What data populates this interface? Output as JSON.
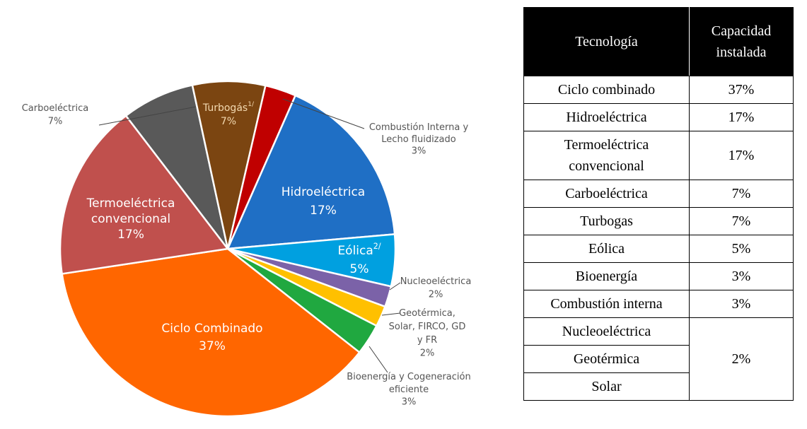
{
  "chart_data": {
    "type": "pie",
    "categories": [
      [
        "Combustión Interna y",
        "Lecho fluidizado"
      ],
      [
        "Hidroeléctrica"
      ],
      [
        "Eólica"
      ],
      [
        "Nucleoeléctrica"
      ],
      [
        "Geotérmica,",
        "Solar, FIRCO, GD",
        "y FR"
      ],
      [
        "Bioenergía y Cogeneración",
        "eficiente"
      ],
      [
        "Ciclo Combinado"
      ],
      [
        "Termoeléctrica",
        "convencional"
      ],
      [
        "Carboeléctrica"
      ],
      [
        "Turbogás"
      ]
    ],
    "footnotes": {
      "2": "2/",
      "9": "1/"
    },
    "values": [
      3,
      17,
      5,
      2,
      2,
      3,
      37,
      17,
      7,
      7
    ],
    "value_labels": [
      "3%",
      "17%",
      "5%",
      "2%",
      "2%",
      "3%",
      "37%",
      "17%",
      "7%",
      "7%"
    ],
    "colors": [
      "#c00000",
      "#1f6fc5",
      "#00a0e0",
      "#7b62a8",
      "#ffc000",
      "#20a840",
      "#ff6600",
      "#c0504d",
      "#595959",
      "#7b4511"
    ]
  },
  "table": {
    "header": [
      [
        "Tecnología"
      ],
      [
        "Capacidad",
        "instalada"
      ]
    ],
    "rows": [
      {
        "tech": [
          "Ciclo combinado"
        ],
        "value": "37%"
      },
      {
        "tech": [
          "Hidroeléctrica"
        ],
        "value": "17%"
      },
      {
        "tech": [
          "Termoeléctrica",
          "convencional"
        ],
        "value": "17%"
      },
      {
        "tech": [
          "Carboeléctrica"
        ],
        "value": "7%"
      },
      {
        "tech": [
          "Turbogas"
        ],
        "value": "7%"
      },
      {
        "tech": [
          "Eólica"
        ],
        "value": "5%"
      },
      {
        "tech": [
          "Bioenergía"
        ],
        "value": "3%"
      },
      {
        "tech": [
          "Combustión interna"
        ],
        "value": "3%"
      },
      {
        "tech": [
          "Nucleoeléctrica",
          "Geotérmica",
          "Solar"
        ],
        "value": "2%"
      }
    ]
  }
}
